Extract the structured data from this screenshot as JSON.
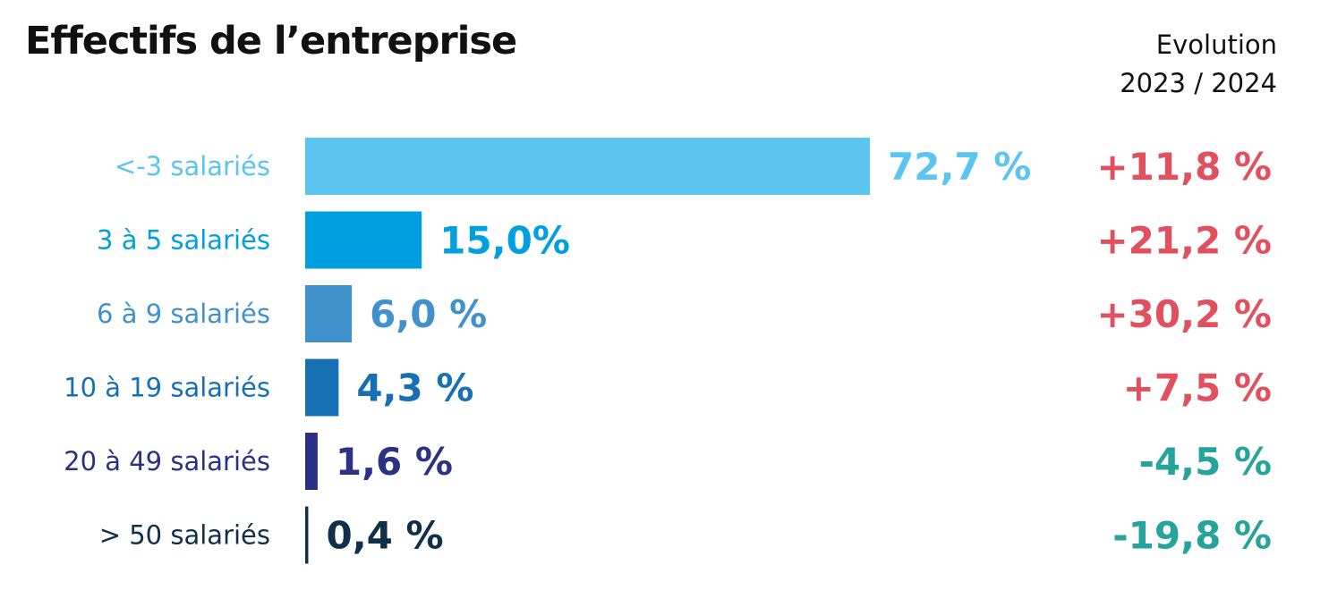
{
  "title": "Effectifs de l’entreprise",
  "evolution_header": {
    "line1": "Evolution",
    "line2": "2023 / 2024"
  },
  "colors": {
    "bars": [
      "#5bc5f0",
      "#009fe0",
      "#4191cd",
      "#1770b3",
      "#2b3183",
      "#102f4b"
    ],
    "positive": "#e0505e",
    "negative": "#26a39b",
    "title": "#111111"
  },
  "chart_data": {
    "type": "bar",
    "orientation": "horizontal",
    "title": "Effectifs de l’entreprise",
    "categories": [
      "<-3 salariés",
      "3 à 5 salariés",
      "6 à 9 salariés",
      "10 à 19 salariés",
      "20 à 49 salariés",
      "> 50 salariés"
    ],
    "values": [
      72.7,
      15.0,
      6.0,
      4.3,
      1.6,
      0.4
    ],
    "value_labels": [
      "72,7 %",
      "15,0%",
      "6,0 %",
      "4,3 %",
      "1,6 %",
      "0,4 %"
    ],
    "evolution": [
      11.8,
      21.2,
      30.2,
      7.5,
      -4.5,
      -19.8
    ],
    "evolution_labels": [
      "+11,8 %",
      "+21,2 %",
      "+30,2 %",
      "+7,5 %",
      "-4,5 %",
      "-19,8 %"
    ],
    "xlim": [
      0,
      72.7
    ],
    "grid": false,
    "legend": "none"
  }
}
